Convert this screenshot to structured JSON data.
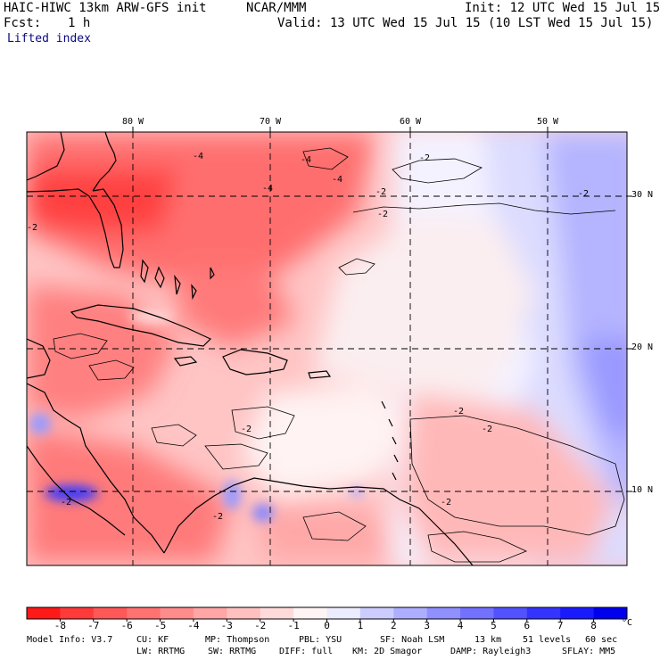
{
  "header": {
    "model_title": "HAIC-HIWC 13km ARW-GFS init",
    "org": "NCAR/MMM",
    "init": "Init: 12 UTC Wed 15 Jul 15",
    "fcst_label": "Fcst:",
    "fcst_value": "1 h",
    "valid": "Valid: 13 UTC Wed 15 Jul 15 (10 LST Wed 15 Jul 15)",
    "field": "Lifted index"
  },
  "map": {
    "lon_labels": [
      "80 W",
      "70 W",
      "60 W",
      "50 W"
    ],
    "lat_labels": [
      "30 N",
      "20 N",
      "10 N"
    ],
    "contour_labels": [
      "-4",
      "-4",
      "-4",
      "-4",
      "-2",
      "-2",
      "-2",
      "-2",
      "-2",
      "-2",
      "-2",
      "-2",
      "-2",
      "-2",
      "-2"
    ]
  },
  "colorbar": {
    "labels": [
      "-8",
      "-7",
      "-6",
      "-5",
      "-4",
      "-3",
      "-2",
      "-1",
      "0",
      "1",
      "2",
      "3",
      "4",
      "5",
      "6",
      "7",
      "8"
    ],
    "unit": "°C",
    "colors": [
      "#ff1a1a",
      "#ff3a3a",
      "#ff5858",
      "#ff7272",
      "#ff8c8c",
      "#ffa6a6",
      "#ffc0c0",
      "#ffdada",
      "#fff4f4",
      "#ececff",
      "#ccccff",
      "#aeaeff",
      "#9090ff",
      "#7272ff",
      "#5252ff",
      "#3434ff",
      "#1a1aff",
      "#0000ee"
    ]
  },
  "footer": {
    "line1": [
      "Model Info: V3.7",
      "CU: KF",
      "MP: Thompson",
      "PBL: YSU",
      "SF: Noah LSM",
      "13 km",
      "51 levels",
      "60 sec"
    ],
    "line2": [
      "LW: RRTMG",
      "SW: RRTMG",
      "DIFF: full",
      "KM: 2D Smagor",
      "DAMP: Rayleigh3",
      "SFLAY: MM5"
    ]
  }
}
